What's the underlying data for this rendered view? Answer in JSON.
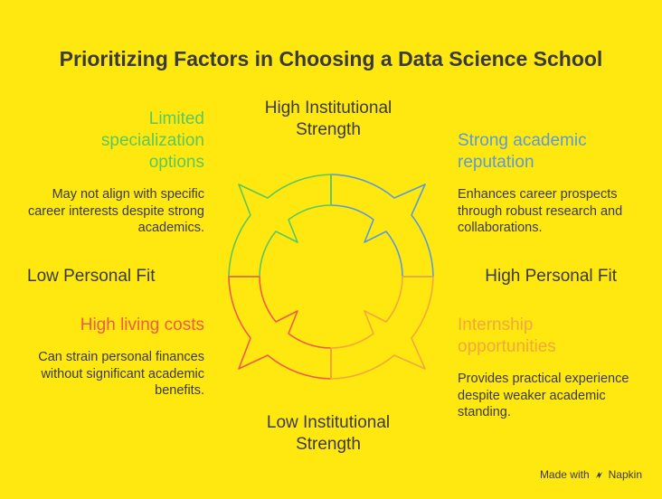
{
  "title": "Prioritizing Factors in Choosing a Data Science School",
  "axes": {
    "top": "High Institutional Strength",
    "bottom": "Low Institutional Strength",
    "left": "Low Personal Fit",
    "right": "High Personal Fit"
  },
  "quadrants": {
    "top_left": {
      "title": "Limited specialization options",
      "description": "May not align with specific career interests despite strong academics.",
      "color": "#5CC75A"
    },
    "top_right": {
      "title": "Strong academic reputation",
      "description": "Enhances career prospects through robust research and collaborations.",
      "color": "#5B9BD5"
    },
    "bottom_left": {
      "title": "High living costs",
      "description": "Can strain personal finances without significant academic benefits.",
      "color": "#EF5B4A"
    },
    "bottom_right": {
      "title": "Internship opportunities",
      "description": "Provides practical experience despite weaker academic standing.",
      "color": "#F2A83B"
    }
  },
  "branding": {
    "prefix": "Made with",
    "name": "Napkin"
  }
}
